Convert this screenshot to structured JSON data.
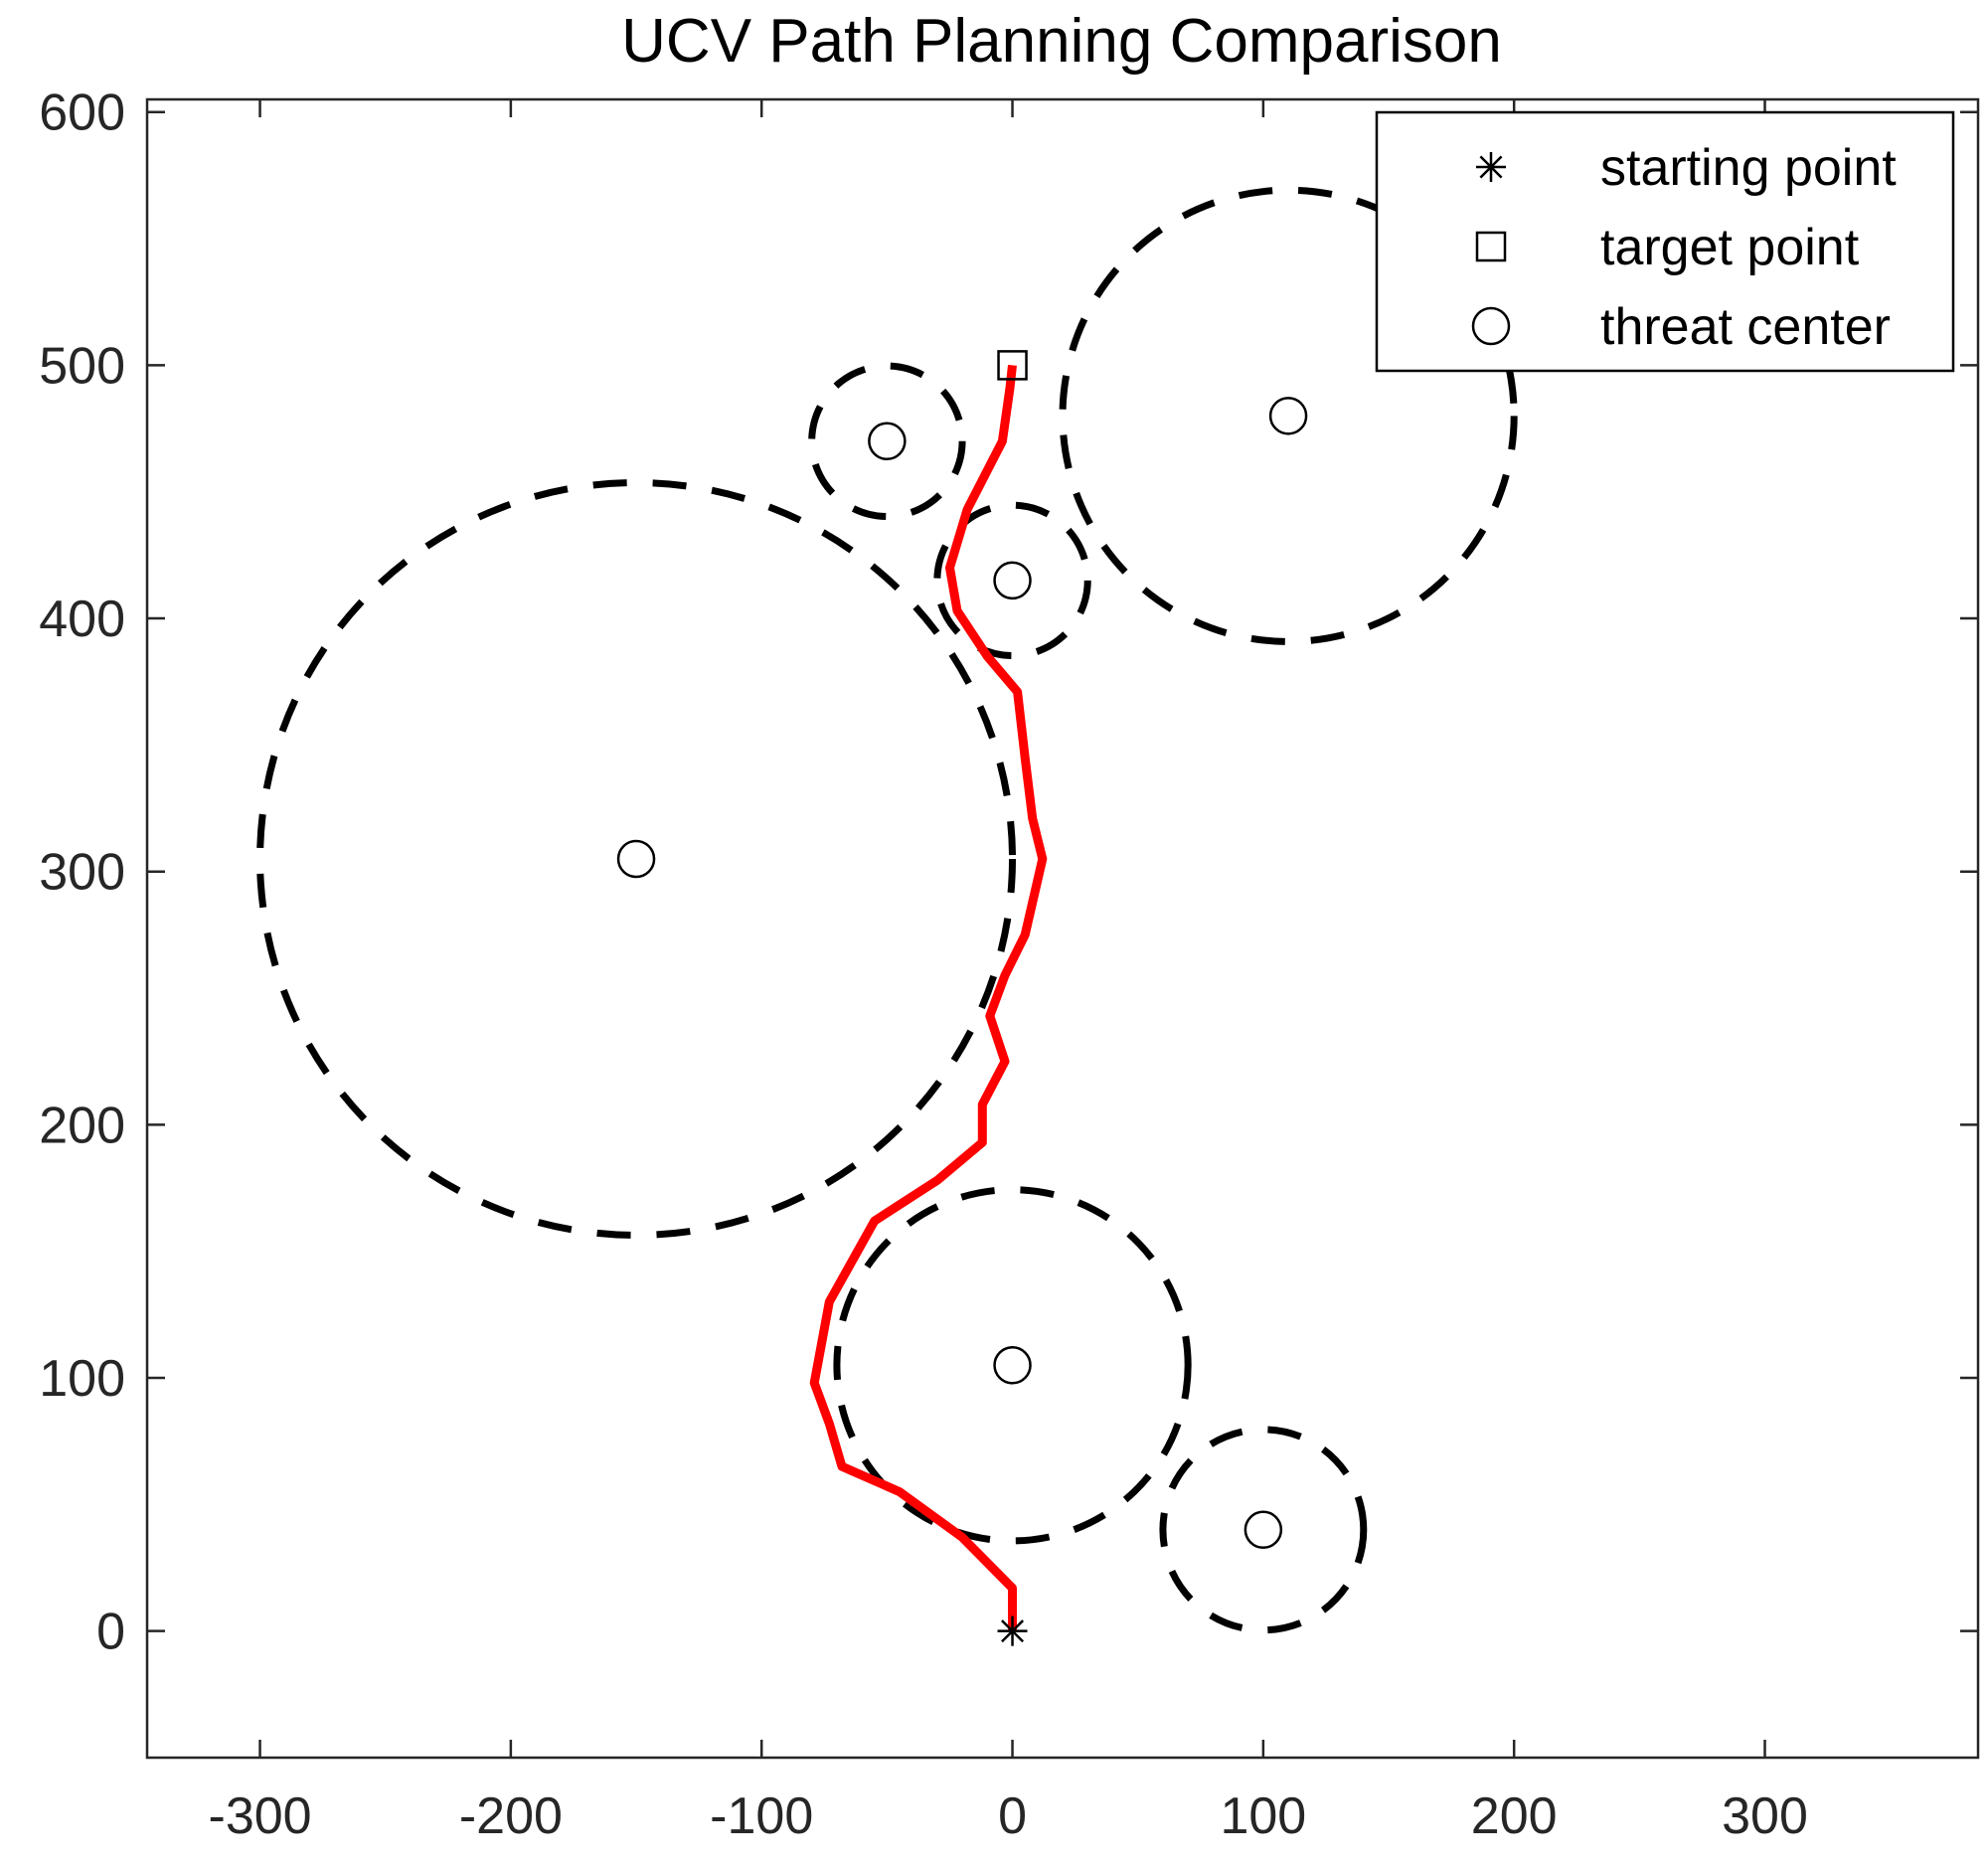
{
  "chart_data": {
    "type": "scatter",
    "title": "UCV Path Planning Comparison",
    "xlabel": "",
    "ylabel": "",
    "xlim": [
      -345,
      385
    ],
    "ylim": [
      -50,
      605
    ],
    "x_ticks": [
      -300,
      -200,
      -100,
      0,
      100,
      200,
      300
    ],
    "y_ticks": [
      0,
      100,
      200,
      300,
      400,
      500,
      600
    ],
    "x_tick_labels": [
      "-300",
      "-200",
      "-100",
      "0",
      "100",
      "200",
      "300"
    ],
    "y_tick_labels": [
      "0",
      "100",
      "200",
      "300",
      "400",
      "500",
      "600"
    ],
    "grid": false,
    "legend_position": "top-right",
    "legend": [
      {
        "label": "starting point",
        "marker": "asterisk"
      },
      {
        "label": "target point",
        "marker": "square"
      },
      {
        "label": "threat center",
        "marker": "circle"
      }
    ],
    "starting_point": {
      "x": 0,
      "y": 0
    },
    "target_point": {
      "x": 0,
      "y": 500
    },
    "threats": [
      {
        "x": 100,
        "y": 40,
        "r": 40
      },
      {
        "x": 0,
        "y": 105,
        "r": 70
      },
      {
        "x": -150,
        "y": 305,
        "r": 150
      },
      {
        "x": 0,
        "y": 415,
        "r": 30
      },
      {
        "x": -50,
        "y": 470,
        "r": 30
      },
      {
        "x": 110,
        "y": 480,
        "r": 90
      }
    ],
    "path": {
      "color": "#ff0000",
      "x": [
        0,
        0,
        -20,
        -45,
        -68,
        -73,
        -79,
        -73,
        -55,
        -30,
        -12,
        -12,
        -3,
        -9,
        -3,
        5,
        12,
        8,
        5,
        2,
        -10,
        -22,
        -25,
        -18,
        -4,
        -1,
        0,
        0
      ],
      "y": [
        0,
        17,
        37,
        55,
        65,
        82,
        98,
        130,
        162,
        178,
        193,
        208,
        225,
        243,
        259,
        275,
        305,
        321,
        345,
        371,
        385,
        403,
        420,
        443,
        470,
        491,
        500,
        500
      ]
    },
    "colors": {
      "threat_circle": "#000000",
      "path": "#ff0000",
      "axes": "#262626"
    }
  }
}
